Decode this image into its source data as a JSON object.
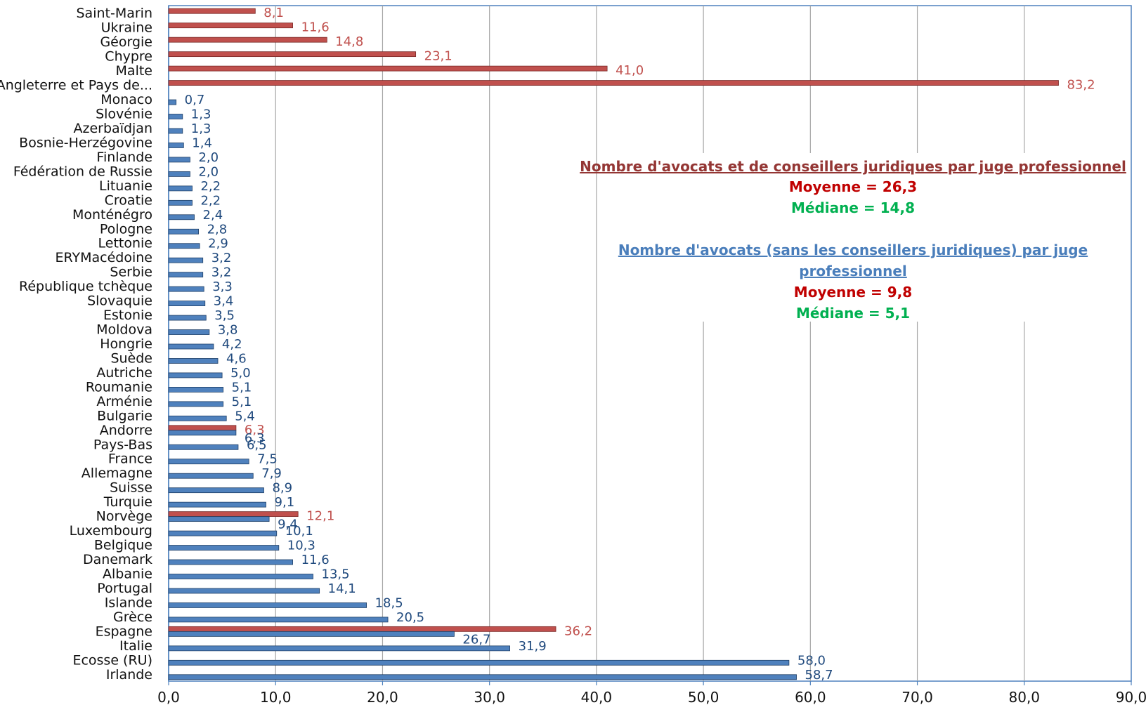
{
  "chart_data": {
    "type": "bar",
    "orientation": "horizontal",
    "categories": [
      "Saint-Marin",
      "Ukraine",
      "Géorgie",
      "Chypre",
      "Malte",
      "Angleterre et Pays de...",
      "Monaco",
      "Slovénie",
      "Azerbaïdjan",
      "Bosnie-Herzégovine",
      "Finlande",
      "Fédération de Russie",
      "Lituanie",
      "Croatie",
      "Monténégro",
      "Pologne",
      "Lettonie",
      "ERYMacédoine",
      "Serbie",
      "République tchèque",
      "Slovaquie",
      "Estonie",
      "Moldova",
      "Hongrie",
      "Suède",
      "Autriche",
      "Roumanie",
      "Arménie",
      "Bulgarie",
      "Andorre",
      "Pays-Bas",
      "France",
      "Allemagne",
      "Suisse",
      "Turquie",
      "Norvège",
      "Luxembourg",
      "Belgique",
      "Danemark",
      "Albanie",
      "Portugal",
      "Islande",
      "Grèce",
      "Espagne",
      "Italie",
      "Ecosse (RU)",
      "Irlande"
    ],
    "series": [
      {
        "color": "#c0504d",
        "values": [
          8.1,
          11.6,
          14.8,
          23.1,
          41.0,
          83.2,
          null,
          null,
          null,
          null,
          null,
          null,
          null,
          null,
          null,
          null,
          null,
          null,
          null,
          null,
          null,
          null,
          null,
          null,
          null,
          null,
          null,
          null,
          null,
          6.3,
          null,
          null,
          null,
          null,
          null,
          12.1,
          null,
          null,
          null,
          null,
          null,
          null,
          null,
          36.2,
          null,
          null,
          null
        ],
        "labels": [
          "8,1",
          "11,6",
          "14,8",
          "23,1",
          "41,0",
          "83,2",
          null,
          null,
          null,
          null,
          null,
          null,
          null,
          null,
          null,
          null,
          null,
          null,
          null,
          null,
          null,
          null,
          null,
          null,
          null,
          null,
          null,
          null,
          null,
          "6,3",
          null,
          null,
          null,
          null,
          null,
          "12,1",
          null,
          null,
          null,
          null,
          null,
          null,
          null,
          "36,2",
          null,
          null,
          null
        ]
      },
      {
        "color": "#4f81bd",
        "values": [
          null,
          null,
          null,
          null,
          null,
          null,
          0.7,
          1.3,
          1.3,
          1.4,
          2.0,
          2.0,
          2.2,
          2.2,
          2.4,
          2.8,
          2.9,
          3.2,
          3.2,
          3.3,
          3.4,
          3.5,
          3.8,
          4.2,
          4.6,
          5.0,
          5.1,
          5.1,
          5.4,
          6.3,
          6.5,
          7.5,
          7.9,
          8.9,
          9.1,
          9.4,
          10.1,
          10.3,
          11.6,
          13.5,
          14.1,
          18.5,
          20.5,
          26.7,
          31.9,
          58.0,
          58.7
        ],
        "labels": [
          null,
          null,
          null,
          null,
          null,
          null,
          "0,7",
          "1,3",
          "1,3",
          "1,4",
          "2,0",
          "2,0",
          "2,2",
          "2,2",
          "2,4",
          "2,8",
          "2,9",
          "3,2",
          "3,2",
          "3,3",
          "3,4",
          "3,5",
          "3,8",
          "4,2",
          "4,6",
          "5,0",
          "5,1",
          "5,1",
          "5,4",
          "6,3",
          "6,5",
          "7,5",
          "7,9",
          "8,9",
          "9,1",
          "9,4",
          "10,1",
          "10,3",
          "11,6",
          "13,5",
          "14,1",
          "18,5",
          "20,5",
          "26,7",
          "31,9",
          "58,0",
          "58,7"
        ]
      }
    ],
    "xlim": [
      0,
      90
    ],
    "xticks": [
      "0,0",
      "10,0",
      "20,0",
      "30,0",
      "40,0",
      "50,0",
      "60,0",
      "70,0",
      "80,0",
      "90,0"
    ],
    "grid": true,
    "legend_text": {
      "red_title": "Nombre d'avocats et de conseillers juridiques par juge professionnel",
      "red_mean": "Moyenne = 26,3",
      "red_median": "Médiane = 14,8",
      "blue_title_line1": "Nombre d'avocats (sans les conseillers juridiques) par juge",
      "blue_title_line2": "professionnel",
      "blue_mean": "Moyenne = 9,8",
      "blue_median": "Médiane = 5,1"
    },
    "colors": {
      "title_red": "#943634",
      "title_blue": "#4a7ebb",
      "stat_red": "#c00000",
      "stat_green": "#00b050",
      "label_blue": "#1f497d",
      "label_red": "#c0504d"
    }
  }
}
